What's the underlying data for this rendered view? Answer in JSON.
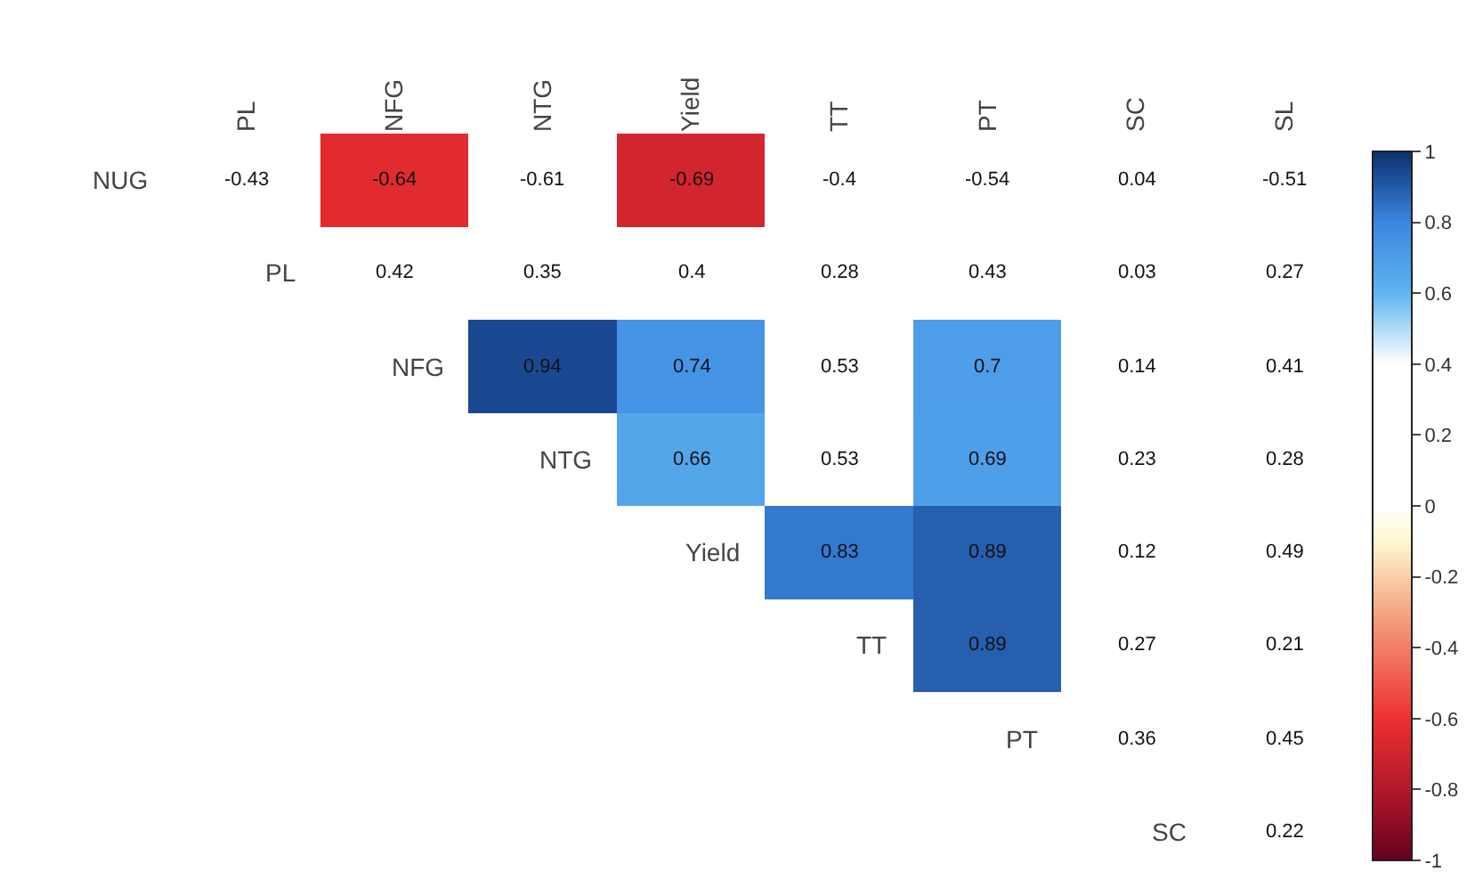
{
  "chart_data": {
    "type": "heatmap",
    "categories": [
      "PL",
      "NFG",
      "NTG",
      "Yield",
      "TT",
      "PT",
      "SC",
      "SL"
    ],
    "y_categories": [
      "NUG",
      "PL",
      "NFG",
      "NTG",
      "Yield",
      "TT",
      "PT",
      "SC"
    ],
    "cells": [
      [
        null,
        -0.64,
        null,
        -0.69,
        null,
        null,
        null,
        null
      ],
      [
        null,
        null,
        null,
        null,
        null,
        null,
        null,
        null
      ],
      [
        null,
        null,
        0.94,
        0.74,
        null,
        0.7,
        null,
        null
      ],
      [
        null,
        null,
        null,
        0.66,
        null,
        0.69,
        null,
        null
      ],
      [
        null,
        null,
        null,
        null,
        0.83,
        0.89,
        null,
        null
      ],
      [
        null,
        null,
        null,
        null,
        null,
        0.89,
        null,
        null
      ],
      [
        null,
        null,
        null,
        null,
        null,
        null,
        null,
        null
      ],
      [
        null,
        null,
        null,
        null,
        null,
        null,
        null,
        null
      ]
    ],
    "cell_labels": [
      [
        "-0.43",
        "-0.64",
        "-0.61",
        "-0.69",
        "-0.4",
        "-0.54",
        "0.04",
        "-0.51"
      ],
      [
        null,
        "0.42",
        "0.35",
        "0.4",
        "0.28",
        "0.43",
        "0.03",
        "0.27"
      ],
      [
        null,
        null,
        "0.94",
        "0.74",
        "0.53",
        "0.7",
        "0.14",
        "0.41"
      ],
      [
        null,
        null,
        null,
        "0.66",
        "0.53",
        "0.69",
        "0.23",
        "0.28"
      ],
      [
        null,
        null,
        null,
        null,
        "0.83",
        "0.89",
        "0.12",
        "0.49"
      ],
      [
        null,
        null,
        null,
        null,
        null,
        "0.89",
        "0.27",
        "0.21"
      ],
      [
        null,
        null,
        null,
        null,
        null,
        null,
        "0.36",
        "0.45"
      ],
      [
        null,
        null,
        null,
        null,
        null,
        null,
        null,
        "0.22"
      ]
    ],
    "clim": [
      -1,
      1
    ],
    "cticks": [
      -1,
      -0.8,
      -0.6,
      -0.4,
      -0.2,
      0,
      0.2,
      0.4,
      0.6,
      0.8,
      1
    ]
  }
}
